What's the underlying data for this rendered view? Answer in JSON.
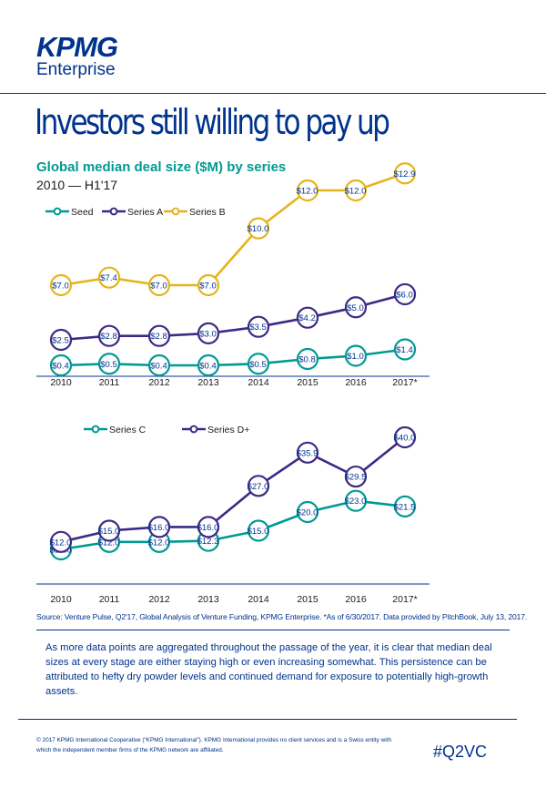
{
  "brand": {
    "kpmg": "KPMG",
    "enterprise": "Enterprise",
    "colors": {
      "navy": "#00338d",
      "teal": "#009a93",
      "gold": "#e5b41c",
      "purple": "#3d2a85"
    }
  },
  "headline": "Investors still willing to pay up",
  "subtitle": "Global median deal size ($M) by series",
  "period": "2010 — H1'17",
  "chart_data": [
    {
      "type": "line",
      "title": "Global median deal size ($M) by series",
      "x": [
        "2010",
        "2011",
        "2012",
        "2013",
        "2014",
        "2015",
        "2016",
        "2017*"
      ],
      "legend_position": "top-left",
      "series": [
        {
          "name": "Seed",
          "color": "#009a93",
          "values": [
            0.4,
            0.5,
            0.4,
            0.4,
            0.5,
            0.8,
            1.0,
            1.4
          ],
          "labels": [
            "$0.4",
            "$0.5",
            "$0.4",
            "$0.4",
            "$0.5",
            "$0.8",
            "$1.0",
            "$1.4"
          ]
        },
        {
          "name": "Series A",
          "color": "#3d2a85",
          "values": [
            2.5,
            2.8,
            2.8,
            3.0,
            3.5,
            4.2,
            5.0,
            6.0
          ],
          "labels": [
            "$2.5",
            "$2.8",
            "$2.8",
            "$3.0",
            "$3.5",
            "$4.2",
            "$5.0",
            "$6.0"
          ]
        },
        {
          "name": "Series B",
          "color": "#e5b41c",
          "values": [
            7.0,
            7.4,
            7.0,
            7.0,
            10.0,
            12.0,
            12.0,
            12.9
          ],
          "labels": [
            "$7.0",
            "$7.4",
            "$7.0",
            "$7.0",
            "$10.0",
            "$12.0",
            "$12.0",
            "$12.9"
          ]
        }
      ]
    },
    {
      "type": "line",
      "x": [
        "2010",
        "2011",
        "2012",
        "2013",
        "2014",
        "2015",
        "2016",
        "2017*"
      ],
      "legend_position": "top-left",
      "series": [
        {
          "name": "Series C",
          "color": "#009a93",
          "values": [
            10.0,
            12.0,
            12.0,
            12.3,
            15.0,
            20.0,
            23.0,
            21.5
          ],
          "labels": [
            "$10.0",
            "$12.0",
            "$12.0",
            "$12.3",
            "$15.0",
            "$20.0",
            "$23.0",
            "$21.5"
          ]
        },
        {
          "name": "Series D+",
          "color": "#3d2a85",
          "values": [
            12.0,
            15.0,
            16.0,
            16.0,
            27.0,
            35.9,
            29.5,
            40.0
          ],
          "labels": [
            "$12.0",
            "$15.0",
            "$16.0",
            "$16.0",
            "$27.0",
            "$35.9",
            "$29.5",
            "$40.0"
          ]
        }
      ]
    }
  ],
  "source": "Source: Venture Pulse, Q2'17, Global Analysis of Venture Funding, KPMG Enterprise. *As of 6/30/2017. Data provided by PitchBook, July 13, 2017.",
  "body": "As more data points are aggregated throughout the passage of the year, it is clear that median deal sizes at every stage are either staying high or even increasing somewhat. This persistence can be attributed to hefty dry powder levels and continued demand for exposure to potentially high-growth assets.",
  "footer": "© 2017 KPMG International Cooperative (“KPMG International”). KPMG International provides no client services and is a Swiss entity with which the independent member firms of the KPMG network are affiliated.",
  "hashtag": "#Q2VC"
}
